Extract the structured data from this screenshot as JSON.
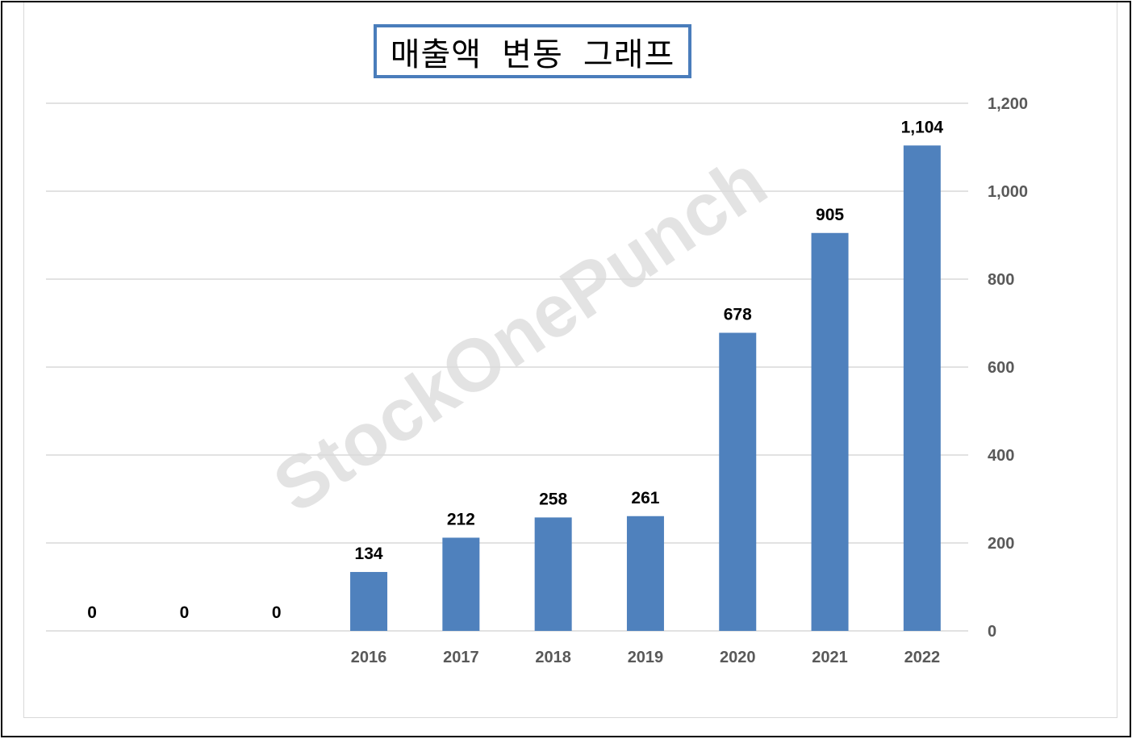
{
  "title": "매출액 변동 그래프",
  "watermark": "StockOnePunch",
  "colors": {
    "bar": "#4f81bd",
    "grid": "#d9d9d9",
    "title_border": "#4a7dbb",
    "axis_text": "#595959"
  },
  "chart_data": {
    "type": "bar",
    "title": "매출액 변동 그래프",
    "categories": [
      "",
      "",
      "",
      "2016",
      "2017",
      "2018",
      "2019",
      "2020",
      "2021",
      "2022"
    ],
    "values": [
      0,
      0,
      0,
      134,
      212,
      258,
      261,
      678,
      905,
      1104
    ],
    "data_labels": [
      "0",
      "0",
      "0",
      "134",
      "212",
      "258",
      "261",
      "678",
      "905",
      "1,104"
    ],
    "ylim": [
      0,
      1200
    ],
    "yticks": [
      "0",
      "200",
      "400",
      "600",
      "800",
      "1,000",
      "1,200"
    ],
    "ytick_values": [
      0,
      200,
      400,
      600,
      800,
      1000,
      1200
    ],
    "y_axis_position": "right",
    "grid": true,
    "legend": "none"
  }
}
